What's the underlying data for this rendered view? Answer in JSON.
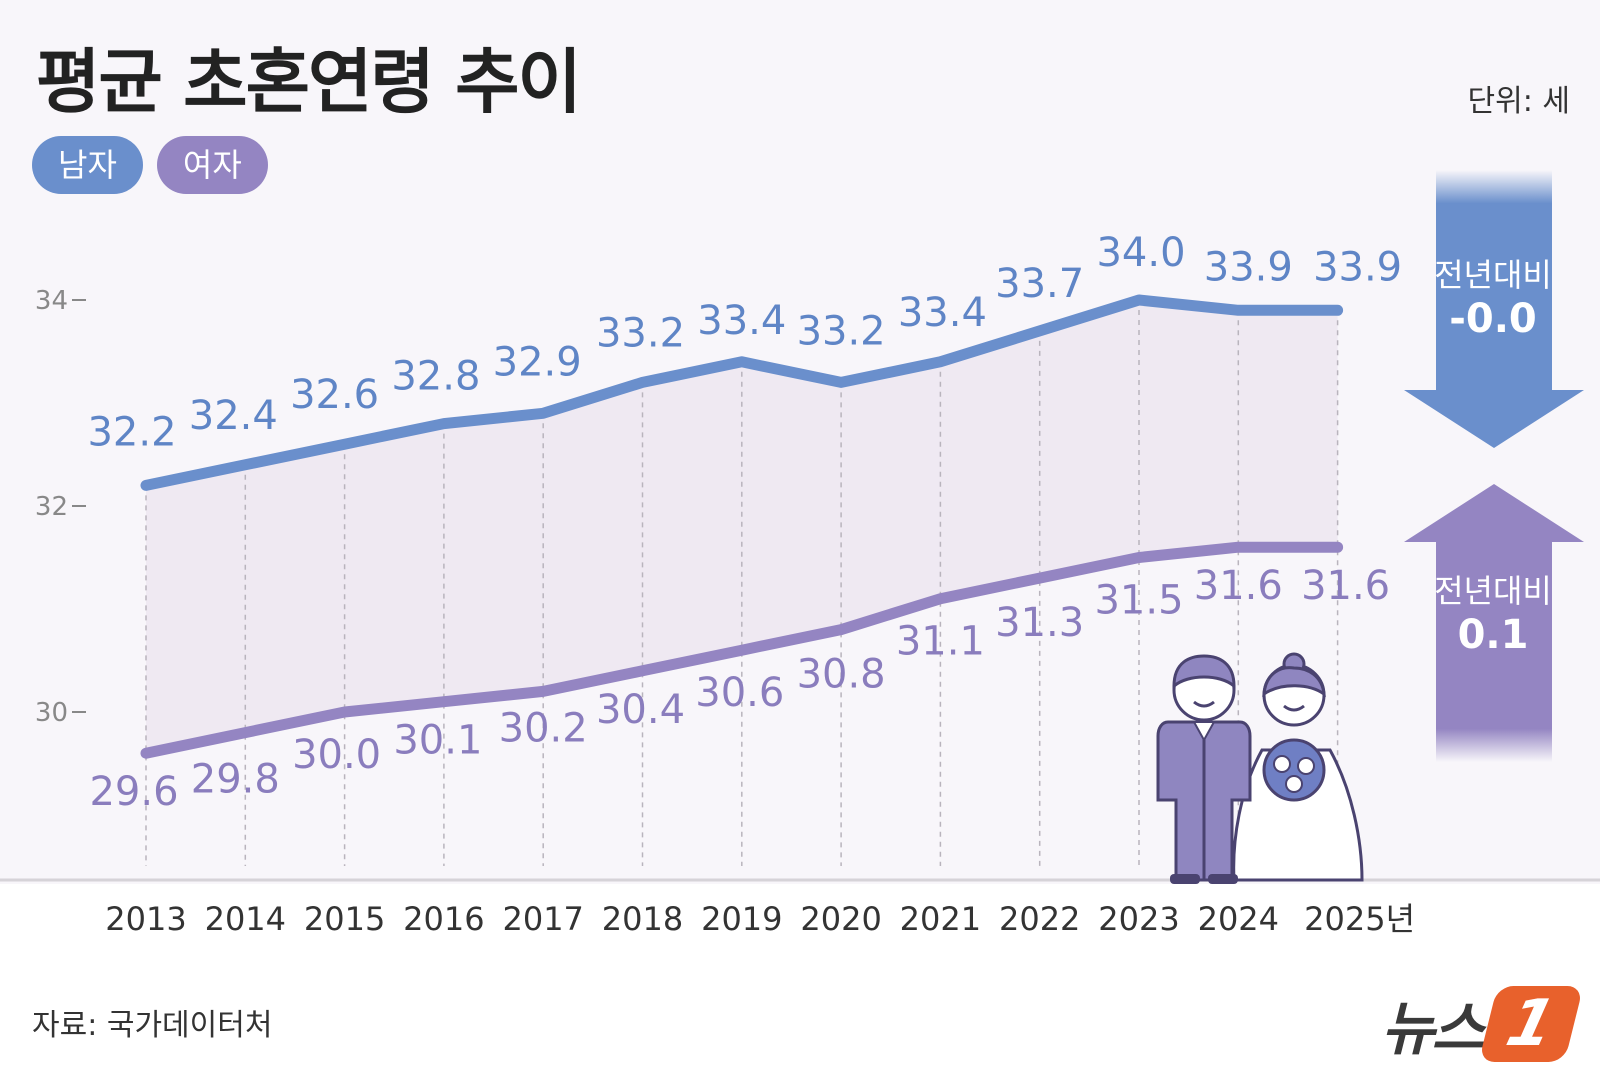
{
  "title": "평균 초혼연령 추이",
  "unit": "단위: 세",
  "source": "자료: 국가데이터처",
  "logo": {
    "text": "뉴스",
    "badge": "1"
  },
  "colors": {
    "men": "#6a8fcc",
    "women": "#9485c2",
    "text_men": "#5f85c6",
    "text_women": "#8a7dbd",
    "fill": "#efe9f2"
  },
  "change_boxes": {
    "men": {
      "label": "전년대비",
      "value": "-0.0",
      "direction": "down"
    },
    "women": {
      "label": "전년대비",
      "value": "0.1",
      "direction": "up"
    }
  },
  "chart_data": {
    "type": "line",
    "title": "평균 초혼연령 추이",
    "x": [
      "2013",
      "2014",
      "2015",
      "2016",
      "2017",
      "2018",
      "2019",
      "2020",
      "2021",
      "2022",
      "2023",
      "2024",
      "2025년"
    ],
    "series": [
      {
        "name": "남자",
        "values": [
          32.2,
          32.4,
          32.6,
          32.8,
          32.9,
          33.2,
          33.4,
          33.2,
          33.4,
          33.7,
          34.0,
          33.9,
          33.9
        ],
        "labels": [
          "32.2",
          "32.4",
          "32.6",
          "32.8",
          "32.9",
          "33.2",
          "33.4",
          "33.2",
          "33.4",
          "33.7",
          "34.0",
          "33.9",
          "33.9"
        ]
      },
      {
        "name": "여자",
        "values": [
          29.6,
          29.8,
          30.0,
          30.1,
          30.2,
          30.4,
          30.6,
          30.8,
          31.1,
          31.3,
          31.5,
          31.6,
          31.6
        ],
        "labels": [
          "29.6",
          "29.8",
          "30.0",
          "30.1",
          "30.2",
          "30.4",
          "30.6",
          "30.8",
          "31.1",
          "31.3",
          "31.5",
          "31.6",
          "31.6"
        ]
      }
    ],
    "yticks": [
      {
        "value": 30,
        "label": "30"
      },
      {
        "value": 32,
        "label": "32"
      },
      {
        "value": 34,
        "label": "34"
      }
    ],
    "ylim": [
      28.5,
      35
    ],
    "grid": false,
    "legend": "top-left"
  }
}
